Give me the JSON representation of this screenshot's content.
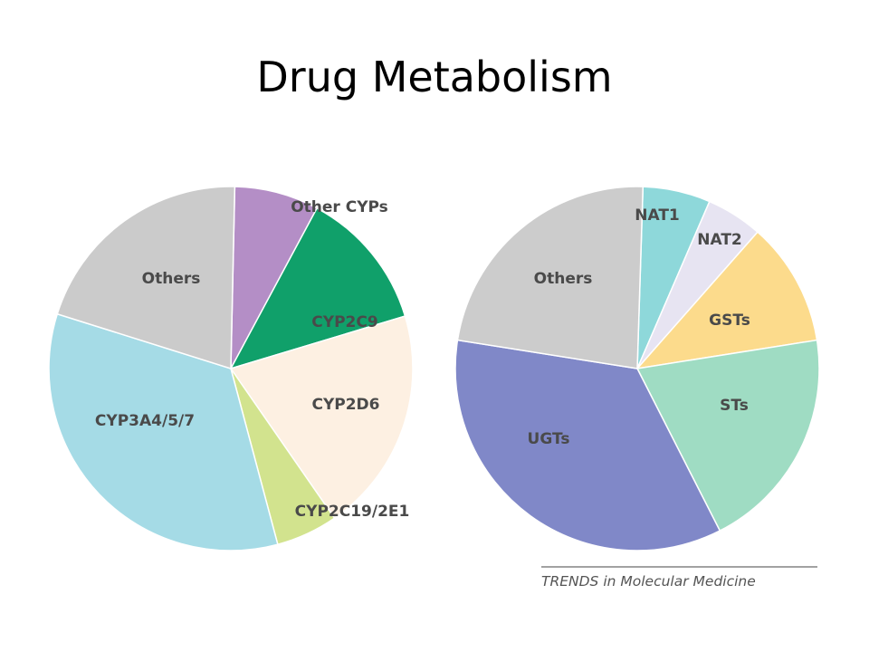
{
  "slide": {
    "title": "Drug Metabolism",
    "source": "TRENDS in Molecular Medicine"
  },
  "chart_data": [
    {
      "type": "pie",
      "title": "",
      "slices": [
        {
          "label": "Other CYPs",
          "value": 7.5,
          "color": "#b48ec6"
        },
        {
          "label": "CYP2C9",
          "value": 12.5,
          "color": "#10a06a"
        },
        {
          "label": "CYP2D6",
          "value": 20,
          "color": "#fdf0e2"
        },
        {
          "label": "CYP2C19/2E1",
          "value": 5.5,
          "color": "#d2e38e"
        },
        {
          "label": "CYP3A4/5/7",
          "value": 34,
          "color": "#a5dbe6"
        },
        {
          "label": "Others",
          "value": 20.5,
          "color": "#cbcbcb"
        }
      ]
    },
    {
      "type": "pie",
      "title": "",
      "slices": [
        {
          "label": "NAT1",
          "value": 6,
          "color": "#8ed8da"
        },
        {
          "label": "NAT2",
          "value": 5,
          "color": "#e7e4f2"
        },
        {
          "label": "GSTs",
          "value": 11,
          "color": "#fcdb8c"
        },
        {
          "label": "STs",
          "value": 20,
          "color": "#9fdcc3"
        },
        {
          "label": "UGTs",
          "value": 35,
          "color": "#8088c8"
        },
        {
          "label": "Others",
          "value": 23,
          "color": "#cccccc"
        }
      ]
    }
  ]
}
